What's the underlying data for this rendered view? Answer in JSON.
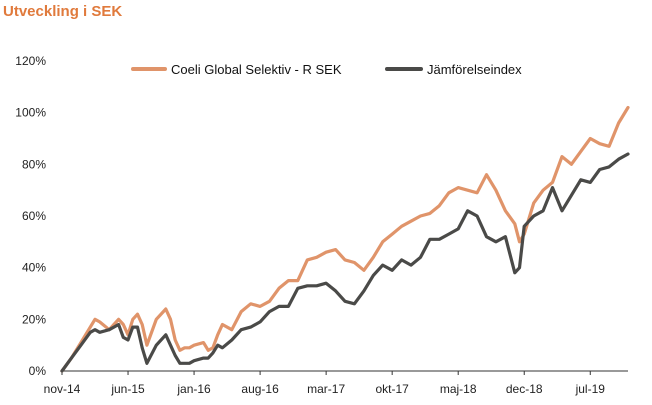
{
  "chart_data": {
    "type": "line",
    "title": "Utveckling i SEK",
    "xlabel": "",
    "ylabel": "",
    "ylim": [
      0,
      120
    ],
    "y_ticks": [
      "0%",
      "20%",
      "40%",
      "60%",
      "80%",
      "100%",
      "120%"
    ],
    "y_tick_values": [
      0,
      20,
      40,
      60,
      80,
      100,
      120
    ],
    "x_range": [
      0,
      60
    ],
    "x_ticks": [
      "nov-14",
      "jun-15",
      "jan-16",
      "aug-16",
      "mar-17",
      "okt-17",
      "maj-18",
      "dec-18",
      "jul-19"
    ],
    "x_tick_values": [
      0,
      7,
      14,
      21,
      28,
      35,
      42,
      49,
      56
    ],
    "legend_position": "top",
    "series": [
      {
        "name": "Coeli Global Selektiv - R SEK",
        "color": "#e0946a",
        "x": [
          0,
          1,
          2,
          3,
          3.5,
          4,
          5,
          5.5,
          6,
          6.5,
          7,
          7.5,
          8,
          8.5,
          9,
          10,
          11,
          11.5,
          12,
          12.5,
          13,
          13.5,
          14,
          15,
          15.5,
          16,
          16.5,
          17,
          18,
          19,
          20,
          21,
          22,
          23,
          24,
          25,
          26,
          27,
          28,
          29,
          30,
          31,
          32,
          33,
          34,
          35,
          36,
          37,
          38,
          39,
          40,
          41,
          42,
          43,
          44,
          45,
          46,
          47,
          48,
          48.5,
          49,
          50,
          51,
          52,
          53,
          54,
          55,
          56,
          57,
          58,
          59,
          60
        ],
        "y": [
          0,
          5,
          11,
          17,
          20,
          19,
          16,
          18,
          20,
          18,
          14,
          20,
          22,
          18,
          10,
          20,
          24,
          20,
          12,
          8,
          9,
          9,
          10,
          11,
          8,
          9,
          14,
          18,
          16,
          23,
          26,
          25,
          27,
          32,
          35,
          35,
          43,
          44,
          46,
          47,
          43,
          42,
          39,
          44,
          50,
          53,
          56,
          58,
          60,
          61,
          64,
          69,
          71,
          70,
          69,
          76,
          70,
          62,
          57,
          50,
          53,
          65,
          70,
          73,
          83,
          80,
          85,
          90,
          88,
          87,
          96,
          102
        ]
      },
      {
        "name": "Jämförelseindex",
        "color": "#4a4a48",
        "x": [
          0,
          1,
          2,
          3,
          3.5,
          4,
          5,
          5.5,
          6,
          6.5,
          7,
          7.5,
          8,
          8.5,
          9,
          10,
          11,
          11.5,
          12,
          12.5,
          13,
          13.5,
          14,
          15,
          15.5,
          16,
          16.5,
          17,
          18,
          19,
          20,
          21,
          22,
          23,
          24,
          25,
          26,
          27,
          28,
          29,
          30,
          31,
          32,
          33,
          34,
          35,
          36,
          37,
          38,
          39,
          40,
          41,
          42,
          43,
          44,
          45,
          46,
          47,
          48,
          48.5,
          49,
          50,
          51,
          52,
          53,
          54,
          55,
          56,
          57,
          58,
          59,
          60
        ],
        "y": [
          0,
          5,
          10,
          15,
          16,
          15,
          16,
          17,
          18,
          13,
          12,
          17,
          17,
          9,
          3,
          10,
          14,
          10,
          6,
          3,
          3,
          3,
          4,
          5,
          5,
          7,
          10,
          9,
          12,
          16,
          17,
          19,
          23,
          25,
          25,
          32,
          33,
          33,
          34,
          31,
          27,
          26,
          31,
          37,
          41,
          39,
          43,
          41,
          44,
          51,
          51,
          53,
          55,
          62,
          60,
          52,
          50,
          52,
          38,
          40,
          56,
          60,
          62,
          71,
          62,
          68,
          74,
          73,
          78,
          79,
          82,
          84
        ]
      }
    ]
  }
}
